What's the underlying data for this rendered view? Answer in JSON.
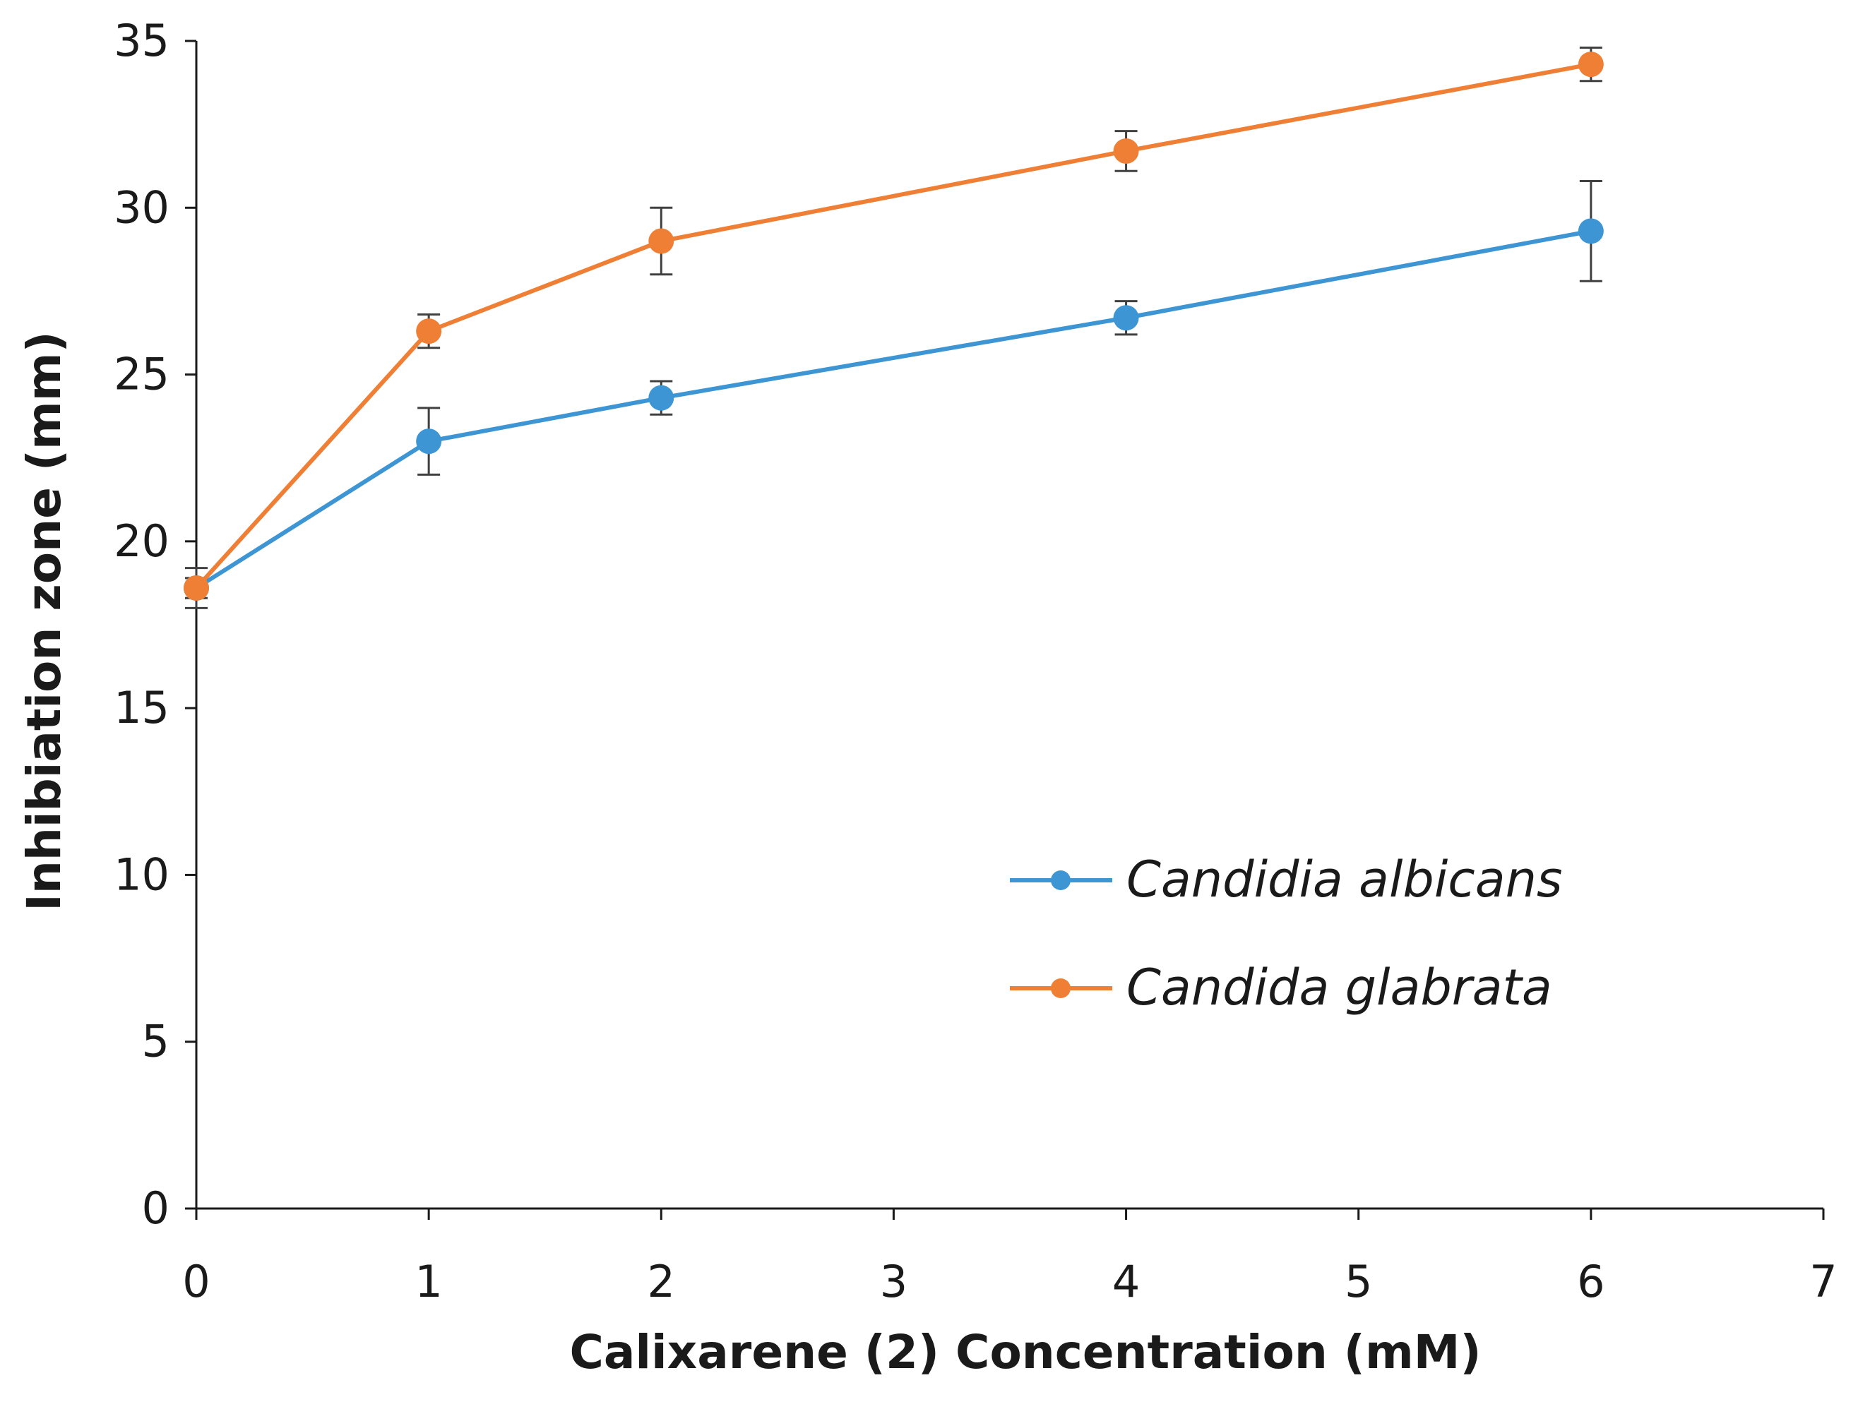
{
  "chart_data": {
    "type": "line",
    "title": "",
    "xlabel": "Calixarene (2) Concentration (mM)",
    "ylabel": "Inhibiation zone (mm)",
    "xlim": [
      0,
      7
    ],
    "ylim": [
      0,
      35
    ],
    "xticks": [
      "0",
      "1",
      "2",
      "3",
      "4",
      "5",
      "6",
      "7"
    ],
    "yticks": [
      "0",
      "5",
      "10",
      "15",
      "20",
      "25",
      "30",
      "35"
    ],
    "grid": false,
    "legend_position": "center-right",
    "series": [
      {
        "name": "Candidia albicans",
        "color": "#3D96D3",
        "x": [
          0,
          1,
          2,
          4,
          6
        ],
        "y": [
          18.6,
          23.0,
          24.3,
          26.7,
          29.3
        ],
        "error": [
          0.3,
          1.0,
          0.5,
          0.5,
          1.5
        ]
      },
      {
        "name": "Candida glabrata",
        "color": "#F07F36",
        "x": [
          0,
          1,
          2,
          4,
          6
        ],
        "y": [
          18.6,
          26.3,
          29.0,
          31.7,
          34.3
        ],
        "error": [
          0.6,
          0.5,
          1.0,
          0.6,
          0.5
        ]
      }
    ]
  }
}
